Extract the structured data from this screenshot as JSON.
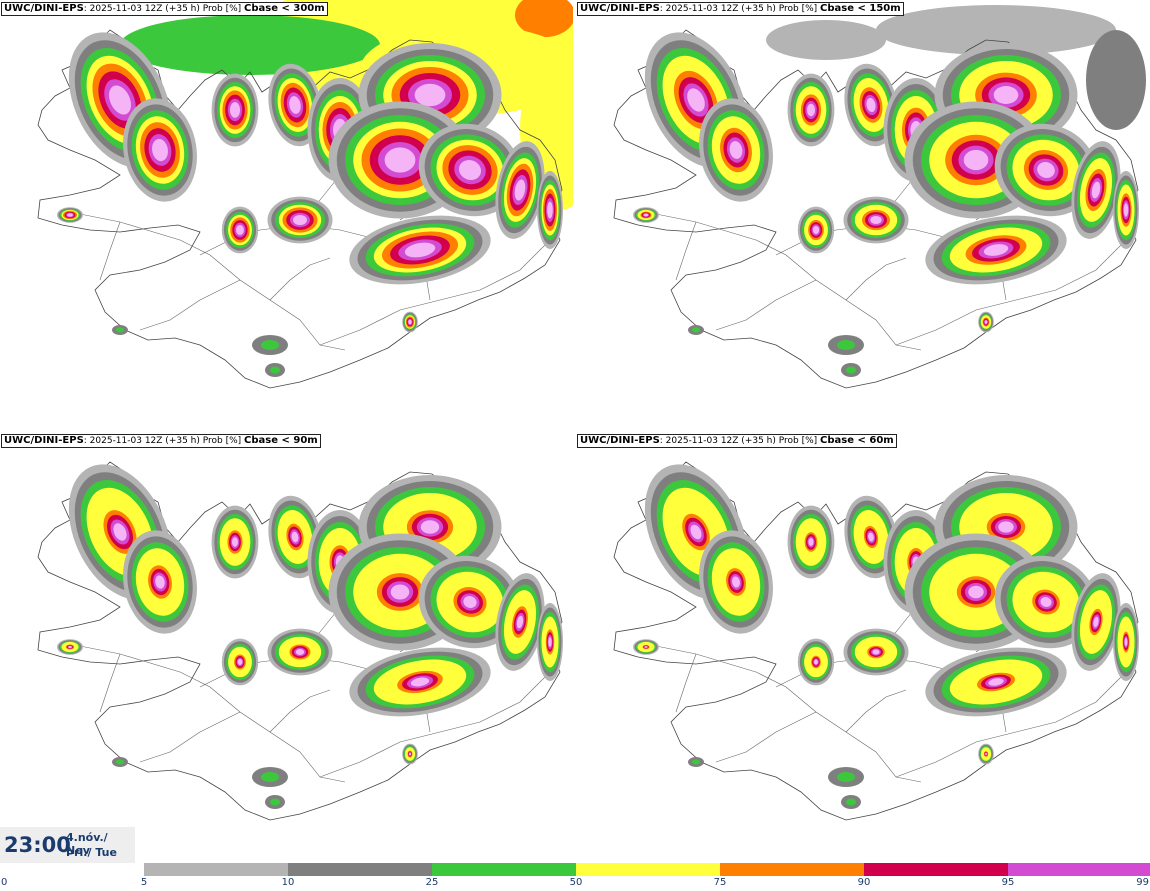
{
  "panels": [
    {
      "model": "UWC/DINI-EPS",
      "run": ": 2025-11-03 12Z (+35 h) Prob [%]",
      "cbase": "Cbase < 300m"
    },
    {
      "model": "UWC/DINI-EPS",
      "run": ": 2025-11-03 12Z (+35 h) Prob [%]",
      "cbase": "Cbase < 150m"
    },
    {
      "model": "UWC/DINI-EPS",
      "run": ": 2025-11-03 12Z (+35 h) Prob [%]",
      "cbase": "Cbase < 90m"
    },
    {
      "model": "UWC/DINI-EPS",
      "run": ": 2025-11-03 12Z (+35 h) Prob [%]",
      "cbase": "Cbase < 60m"
    }
  ],
  "valid_time": {
    "time": "23:00",
    "date_line1": "4.nóv./ Nov",
    "date_line2": "Þri./ Tue"
  },
  "colorbar": {
    "levels": [
      "0",
      "5",
      "10",
      "25",
      "50",
      "75",
      "90",
      "95",
      "99"
    ],
    "colors": [
      "#ffffff",
      "#b4b4b4",
      "#7f7f7f",
      "#3cc83c",
      "#ffff3c",
      "#ff7f00",
      "#d2004c",
      "#d24bd2",
      "#f5b4f5"
    ]
  },
  "palette": {
    "light_grey": "#b4b4b4",
    "dark_grey": "#7f7f7f",
    "green": "#3cc83c",
    "yellow": "#ffff3c",
    "orange": "#ff7f00",
    "red": "#d2004c",
    "purple": "#d24bd2",
    "pink": "#f5b4f5"
  },
  "intensity_by_panel": [
    1.0,
    0.8,
    0.6,
    0.5
  ]
}
